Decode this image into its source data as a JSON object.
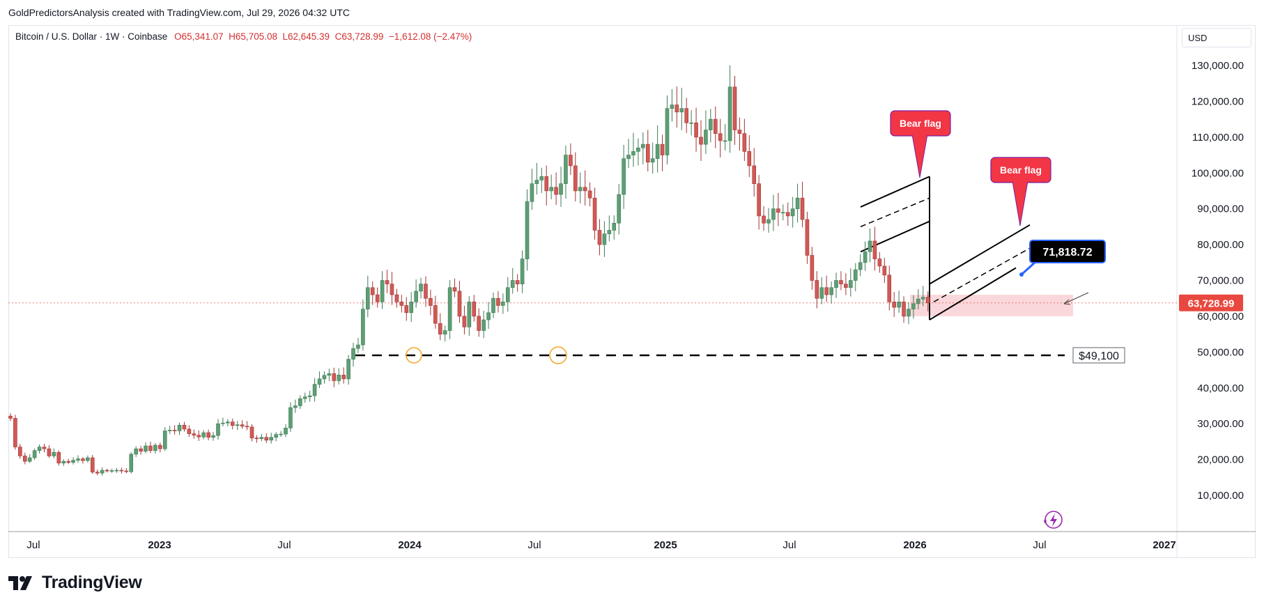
{
  "header": {
    "caption": "GoldPredictorsAnalysis created with TradingView.com, Jul 29, 2026 04:32 UTC"
  },
  "legend": {
    "symbol": "Bitcoin / U.S. Dollar · 1W · Coinbase",
    "open": "O65,341.07",
    "high": "H65,705.08",
    "low": "L62,645.39",
    "close": "C63,728.99",
    "change": "−1,612.08 (−2.47%)"
  },
  "currency_button": "USD",
  "brand": {
    "name": "TradingView"
  },
  "colors": {
    "up": "#22ab94",
    "up_fill": "#5e9e75",
    "down": "#c13b3b",
    "down_fill": "#d05a55",
    "accent_red": "#f23645",
    "price_tag": "#e8483f",
    "zone": "#f8c9cd",
    "callout": "#000000"
  },
  "chart_data": {
    "type": "candlestick",
    "interval": "1W",
    "y_axis": {
      "scale": "linear",
      "range": [
        0,
        136000
      ],
      "ticks": [
        "130,000.00",
        "120,000.00",
        "110,000.00",
        "100,000.00",
        "90,000.00",
        "80,000.00",
        "70,000.00",
        "60,000.00",
        "50,000.00",
        "40,000.00",
        "30,000.00",
        "20,000.00",
        "10,000.00"
      ]
    },
    "x_axis": {
      "labels": [
        "Jul",
        "2023",
        "Jul",
        "2024",
        "Jul",
        "2025",
        "Jul",
        "2026",
        "Jul",
        "2027"
      ]
    },
    "last_price": "63,728.99",
    "annotations": {
      "bear_flag_1": "Bear flag",
      "bear_flag_2": "Bear flag",
      "callout_price": "71,818.72",
      "support_label": "$49,100",
      "support_level": 49100
    },
    "closes": [
      31500,
      23500,
      21000,
      19500,
      20500,
      22500,
      23500,
      23000,
      21000,
      22000,
      19000,
      19500,
      19200,
      19800,
      20200,
      19700,
      20500,
      16500,
      16200,
      17000,
      16800,
      16900,
      17000,
      16800,
      16600,
      21500,
      23000,
      22300,
      23800,
      22500,
      24000,
      23000,
      28000,
      28200,
      28000,
      29600,
      28500,
      27200,
      26800,
      26300,
      27500,
      26200,
      26700,
      30000,
      30200,
      30500,
      29500,
      29700,
      29300,
      29100,
      26000,
      25800,
      26200,
      25400,
      26200,
      27000,
      27100,
      28800,
      34500,
      35000,
      37000,
      37500,
      37800,
      41000,
      42500,
      43500,
      44000,
      42000,
      43600,
      42500,
      48000,
      51000,
      52000,
      62000,
      68000,
      66000,
      64000,
      70000,
      69000,
      66000,
      64000,
      63000,
      61000,
      64000,
      67000,
      69000,
      65000,
      63000,
      58000,
      55000,
      56000,
      68000,
      67000,
      60000,
      57000,
      64000,
      60000,
      56000,
      59000,
      61000,
      65000,
      63000,
      64000,
      68000,
      70000,
      69000,
      76000,
      92000,
      97000,
      98000,
      99000,
      95000,
      96000,
      94000,
      97000,
      105000,
      102000,
      95000,
      96000,
      95000,
      93000,
      84000,
      80000,
      83000,
      84000,
      86000,
      94000,
      104000,
      105000,
      106000,
      107000,
      108000,
      103000,
      104000,
      108000,
      105000,
      118000,
      119000,
      117000,
      118000,
      114000,
      114000,
      110000,
      108000,
      112000,
      115000,
      111000,
      109000,
      109000,
      124000,
      112000,
      111000,
      106000,
      102000,
      97000,
      88000,
      86000,
      87000,
      90000,
      89000,
      89000,
      88000,
      90000,
      93000,
      87000,
      77000,
      70000,
      65000,
      68000,
      66000,
      68000,
      70000,
      69000,
      68000,
      70000,
      73000,
      75000,
      78000,
      81000,
      76000,
      74000,
      71500,
      64000,
      62500,
      64000,
      60000,
      62000,
      63500,
      64800,
      65300,
      63729
    ],
    "bear_flag_1": {
      "upper": [
        [
          86500,
          97000
        ],
        [
          97500,
          97000
        ]
      ],
      "lower": [
        [
          80000,
          86000
        ]
      ]
    },
    "support_zone": [
      60000,
      66000
    ]
  }
}
